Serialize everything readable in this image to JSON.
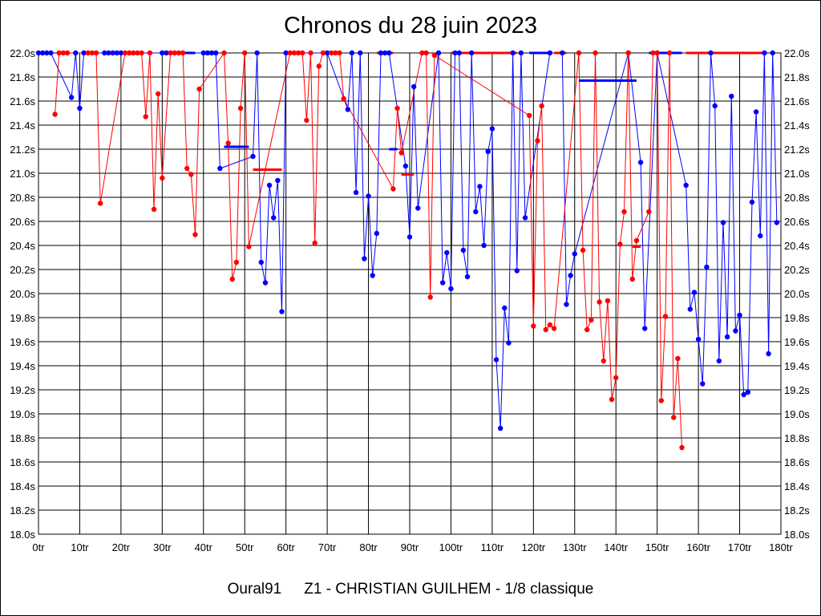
{
  "chart_data": {
    "type": "line",
    "title": "Chronos du 28 juin 2023",
    "xlabel": "",
    "ylabel": "",
    "xlim": [
      0,
      180
    ],
    "ylim": [
      18.0,
      22.0
    ],
    "x_ticks": [
      "0tr",
      "10tr",
      "20tr",
      "30tr",
      "40tr",
      "50tr",
      "60tr",
      "70tr",
      "80tr",
      "90tr",
      "100tr",
      "110tr",
      "120tr",
      "130tr",
      "140tr",
      "150tr",
      "160tr",
      "170tr",
      "180tr"
    ],
    "y_ticks": [
      "18.0s",
      "18.2s",
      "18.4s",
      "18.6s",
      "18.8s",
      "19.0s",
      "19.2s",
      "19.4s",
      "19.6s",
      "19.8s",
      "20.0s",
      "20.2s",
      "20.4s",
      "20.6s",
      "20.8s",
      "21.0s",
      "21.2s",
      "21.4s",
      "21.6s",
      "21.8s",
      "22.0s"
    ],
    "grid": true,
    "series": [
      {
        "name": "blue",
        "color": "#0000ff",
        "points": [
          [
            0,
            22.0
          ],
          [
            1,
            22.0
          ],
          [
            2,
            22.0
          ],
          [
            3,
            22.0
          ],
          [
            8,
            21.63
          ],
          [
            9,
            22.0
          ],
          [
            10,
            21.54
          ],
          [
            11,
            22.0
          ],
          [
            16,
            22.0
          ],
          [
            17,
            22.0
          ],
          [
            18,
            22.0
          ],
          [
            19,
            22.0
          ],
          [
            20,
            22.0
          ],
          [
            30,
            22.0
          ],
          [
            31,
            22.0
          ],
          [
            40,
            22.0
          ],
          [
            41,
            22.0
          ],
          [
            42,
            22.0
          ],
          [
            43,
            22.0
          ],
          [
            44,
            21.04
          ],
          [
            52,
            21.14
          ],
          [
            53,
            22.0
          ],
          [
            54,
            20.26
          ],
          [
            55,
            20.09
          ],
          [
            56,
            20.9
          ],
          [
            57,
            20.63
          ],
          [
            58,
            20.94
          ],
          [
            59,
            19.85
          ],
          [
            60,
            22.0
          ],
          [
            70,
            22.0
          ],
          [
            75,
            21.53
          ],
          [
            76,
            22.0
          ],
          [
            77,
            20.84
          ],
          [
            78,
            22.0
          ],
          [
            79,
            20.29
          ],
          [
            80,
            20.81
          ],
          [
            81,
            20.15
          ],
          [
            82,
            20.5
          ],
          [
            83,
            22.0
          ],
          [
            84,
            22.0
          ],
          [
            85,
            22.0
          ],
          [
            89,
            21.06
          ],
          [
            90,
            20.47
          ],
          [
            91,
            21.72
          ],
          [
            92,
            20.71
          ],
          [
            97,
            22.0
          ],
          [
            98,
            20.09
          ],
          [
            99,
            20.34
          ],
          [
            100,
            20.04
          ],
          [
            101,
            22.0
          ],
          [
            102,
            22.0
          ],
          [
            103,
            20.36
          ],
          [
            104,
            20.14
          ],
          [
            105,
            22.0
          ],
          [
            106,
            20.68
          ],
          [
            107,
            20.89
          ],
          [
            108,
            20.4
          ],
          [
            109,
            21.18
          ],
          [
            110,
            21.37
          ],
          [
            111,
            19.45
          ],
          [
            112,
            18.88
          ],
          [
            113,
            19.88
          ],
          [
            114,
            19.59
          ],
          [
            115,
            22.0
          ],
          [
            116,
            20.19
          ],
          [
            117,
            22.0
          ],
          [
            118,
            20.63
          ],
          [
            124,
            22.0
          ],
          [
            127,
            22.0
          ],
          [
            128,
            19.91
          ],
          [
            129,
            20.15
          ],
          [
            130,
            20.33
          ],
          [
            143,
            22.0
          ],
          [
            146,
            21.09
          ],
          [
            147,
            19.71
          ],
          [
            150,
            22.0
          ],
          [
            157,
            20.9
          ],
          [
            158,
            19.87
          ],
          [
            159,
            20.01
          ],
          [
            160,
            19.62
          ],
          [
            161,
            19.25
          ],
          [
            162,
            20.22
          ],
          [
            163,
            22.0
          ],
          [
            164,
            21.56
          ],
          [
            165,
            19.44
          ],
          [
            166,
            20.59
          ],
          [
            167,
            19.64
          ],
          [
            168,
            21.64
          ],
          [
            169,
            19.69
          ],
          [
            170,
            19.82
          ],
          [
            171,
            19.16
          ],
          [
            172,
            19.18
          ],
          [
            173,
            20.76
          ],
          [
            174,
            21.51
          ],
          [
            175,
            20.48
          ],
          [
            176,
            22.0
          ],
          [
            177,
            19.5
          ],
          [
            178,
            22.0
          ],
          [
            179,
            20.59
          ]
        ]
      },
      {
        "name": "red",
        "color": "#ff0000",
        "points": [
          [
            4,
            21.49
          ],
          [
            5,
            22.0
          ],
          [
            6,
            22.0
          ],
          [
            7,
            22.0
          ],
          [
            12,
            22.0
          ],
          [
            13,
            22.0
          ],
          [
            14,
            22.0
          ],
          [
            15,
            20.75
          ],
          [
            21,
            22.0
          ],
          [
            22,
            22.0
          ],
          [
            23,
            22.0
          ],
          [
            24,
            22.0
          ],
          [
            25,
            22.0
          ],
          [
            26,
            21.47
          ],
          [
            27,
            22.0
          ],
          [
            28,
            20.7
          ],
          [
            29,
            21.66
          ],
          [
            30,
            20.96
          ],
          [
            32,
            22.0
          ],
          [
            33,
            22.0
          ],
          [
            34,
            22.0
          ],
          [
            35,
            22.0
          ],
          [
            36,
            21.04
          ],
          [
            37,
            20.99
          ],
          [
            38,
            20.49
          ],
          [
            39,
            21.7
          ],
          [
            45,
            22.0
          ],
          [
            46,
            21.25
          ],
          [
            47,
            20.12
          ],
          [
            48,
            20.26
          ],
          [
            49,
            21.54
          ],
          [
            50,
            22.0
          ],
          [
            51,
            20.39
          ],
          [
            61,
            22.0
          ],
          [
            62,
            22.0
          ],
          [
            63,
            22.0
          ],
          [
            64,
            22.0
          ],
          [
            65,
            21.44
          ],
          [
            66,
            22.0
          ],
          [
            67,
            20.42
          ],
          [
            68,
            21.89
          ],
          [
            69,
            22.0
          ],
          [
            71,
            22.0
          ],
          [
            72,
            22.0
          ],
          [
            73,
            22.0
          ],
          [
            74,
            21.62
          ],
          [
            86,
            20.87
          ],
          [
            87,
            21.54
          ],
          [
            88,
            21.17
          ],
          [
            93,
            22.0
          ],
          [
            94,
            22.0
          ],
          [
            95,
            19.97
          ],
          [
            96,
            21.98
          ],
          [
            119,
            21.48
          ],
          [
            120,
            19.73
          ],
          [
            121,
            21.27
          ],
          [
            122,
            21.56
          ],
          [
            123,
            19.7
          ],
          [
            124,
            19.74
          ],
          [
            125,
            19.71
          ],
          [
            131,
            22.0
          ],
          [
            132,
            20.36
          ],
          [
            133,
            19.7
          ],
          [
            134,
            19.78
          ],
          [
            135,
            22.0
          ],
          [
            136,
            19.93
          ],
          [
            137,
            19.44
          ],
          [
            138,
            19.94
          ],
          [
            139,
            19.12
          ],
          [
            140,
            19.3
          ],
          [
            141,
            20.41
          ],
          [
            142,
            20.68
          ],
          [
            143,
            22.0
          ],
          [
            144,
            20.12
          ],
          [
            145,
            20.44
          ],
          [
            148,
            20.68
          ],
          [
            149,
            22.0
          ],
          [
            150,
            22.0
          ],
          [
            151,
            19.11
          ],
          [
            152,
            19.81
          ],
          [
            153,
            22.0
          ],
          [
            154,
            18.97
          ],
          [
            155,
            19.46
          ],
          [
            156,
            18.72
          ]
        ]
      }
    ],
    "bars": [
      {
        "color": "#0000ff",
        "y": 22.0,
        "x_start": 34,
        "x_end": 38
      },
      {
        "color": "#0000ff",
        "y": 21.22,
        "x_start": 45,
        "x_end": 51
      },
      {
        "color": "#ff0000",
        "y": 21.03,
        "x_start": 52,
        "x_end": 59
      },
      {
        "color": "#ff0000",
        "y": 22.0,
        "x_start": 82,
        "x_end": 86
      },
      {
        "color": "#0000ff",
        "y": 21.2,
        "x_start": 85,
        "x_end": 87
      },
      {
        "color": "#ff0000",
        "y": 20.99,
        "x_start": 88,
        "x_end": 91
      },
      {
        "color": "#ff0000",
        "y": 22.0,
        "x_start": 100,
        "x_end": 116
      },
      {
        "color": "#0000ff",
        "y": 22.0,
        "x_start": 119,
        "x_end": 124
      },
      {
        "color": "#ff0000",
        "y": 22.0,
        "x_start": 125,
        "x_end": 128
      },
      {
        "color": "#0000ff",
        "y": 21.77,
        "x_start": 131,
        "x_end": 145
      },
      {
        "color": "#ff0000",
        "y": 20.39,
        "x_start": 144,
        "x_end": 146
      },
      {
        "color": "#0000ff",
        "y": 22.0,
        "x_start": 148,
        "x_end": 156
      },
      {
        "color": "#ff0000",
        "y": 22.0,
        "x_start": 157,
        "x_end": 176
      }
    ]
  },
  "footer": {
    "source": "Oural91",
    "detail": "Z1 - CHRISTIAN GUILHEM - 1/8 classique"
  }
}
